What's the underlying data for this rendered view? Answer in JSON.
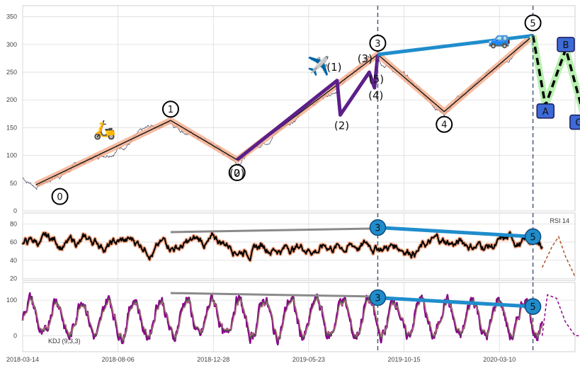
{
  "chart_data": [
    {
      "type": "line",
      "panel": "price",
      "ylim": [
        0,
        370
      ],
      "yticks": [
        0,
        50,
        100,
        150,
        200,
        250,
        300,
        350
      ],
      "x_dates": [
        "2018-03-14",
        "2018-08-06",
        "2018-12-28",
        "2019-05-23",
        "2019-10-15",
        "2020-03-10"
      ],
      "xlim_days": [
        0,
        840
      ],
      "grid": true,
      "vertical_markers_days": [
        540,
        776
      ],
      "primary_wave": {
        "labels": [
          "0",
          "1",
          "2",
          "3",
          "4",
          "5"
        ],
        "days": [
          20,
          225,
          326,
          540,
          641,
          776
        ],
        "values": [
          47,
          163,
          92,
          282,
          179,
          316
        ]
      },
      "secondary_wave": {
        "labels": [
          "(0)",
          "(1)",
          "(2)",
          "(3)",
          "(4)",
          "(5)"
        ],
        "days": [
          326,
          478,
          483,
          527,
          535,
          540
        ],
        "values": [
          92,
          235,
          173,
          250,
          222,
          282
        ]
      },
      "corrective_wave": {
        "labels": [
          "A",
          "B",
          "C"
        ],
        "days": [
          776,
          795,
          826,
          856
        ],
        "values": [
          316,
          190,
          292,
          160
        ]
      },
      "top_trend_days": [
        540,
        776
      ],
      "top_trend_values": [
        282,
        316
      ],
      "emojis": [
        {
          "symbol": "🛵",
          "day": 125,
          "value": 135
        },
        {
          "symbol": "✈️",
          "day": 450,
          "value": 250
        },
        {
          "symbol": "🚙",
          "day": 725,
          "value": 300
        }
      ],
      "colors": {
        "price": "#3a3a55",
        "primary_band": "#f4a582",
        "primary_line": "#1a1a1a",
        "secondary": "#5b1f8a",
        "trend": "#1f8dcc",
        "corrective_glow": "#b8f0b0",
        "abc_box": "#3d6ad6",
        "marker": "#4a5a7a"
      }
    },
    {
      "type": "line",
      "panel": "rsi",
      "label": "RSI 14",
      "ylim": [
        18,
        92
      ],
      "yticks": [
        20,
        40,
        60,
        80
      ],
      "markers": [
        {
          "label": "3",
          "day": 540,
          "value": 76
        },
        {
          "label": "5",
          "day": 776,
          "value": 66
        }
      ],
      "trend_grey": {
        "days": [
          225,
          540
        ],
        "values": [
          71,
          75
        ]
      },
      "colors": {
        "line": "#000000",
        "glow": "#f4a582",
        "grey": "#8a8a8a",
        "marker": "#1f8dcc"
      }
    },
    {
      "type": "line",
      "panel": "kdj",
      "label": "KDJ (9,3,3)",
      "ylim": [
        -45,
        150
      ],
      "yticks": [
        0,
        100
      ],
      "markers": [
        {
          "label": "3",
          "day": 540,
          "value": 107
        },
        {
          "label": "5",
          "day": 776,
          "value": 82
        }
      ],
      "trend_grey": {
        "days": [
          225,
          540
        ],
        "values": [
          120,
          110
        ]
      },
      "colors": {
        "j": "#8b008b",
        "k": "#555555",
        "d": "#c07a7a",
        "grey": "#8a8a8a",
        "marker": "#1f8dcc"
      }
    }
  ]
}
